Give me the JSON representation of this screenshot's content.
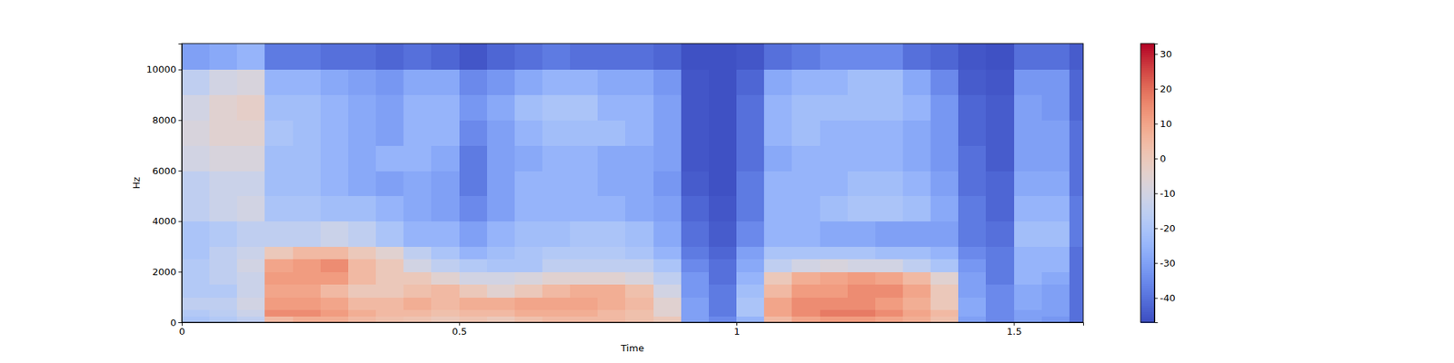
{
  "chart_data": {
    "type": "heatmap",
    "xlabel": "Time",
    "ylabel": "Hz",
    "xlim": [
      0,
      1.625
    ],
    "xticks": [
      0,
      0.5,
      1,
      1.5
    ],
    "ylim": [
      0,
      11025
    ],
    "yticks": [
      0,
      2000,
      4000,
      6000,
      8000,
      10000
    ],
    "x_bins": [
      0,
      0.05,
      0.1,
      0.15,
      0.2,
      0.25,
      0.3,
      0.35,
      0.4,
      0.45,
      0.5,
      0.55,
      0.6,
      0.65,
      0.7,
      0.75,
      0.8,
      0.85,
      0.9,
      0.95,
      1,
      1.05,
      1.1,
      1.15,
      1.2,
      1.25,
      1.3,
      1.35,
      1.4,
      1.45,
      1.5,
      1.55,
      1.6,
      1.625
    ],
    "y_bins": [
      0,
      250,
      500,
      1000,
      1500,
      2000,
      2500,
      3000,
      4000,
      5000,
      6000,
      7000,
      8000,
      9000,
      10000,
      11025
    ],
    "z": [
      [
        -20,
        -18,
        -15,
        5,
        8,
        8,
        5,
        3,
        2,
        0,
        2,
        0,
        3,
        5,
        5,
        5,
        3,
        0,
        -30,
        -35,
        -25,
        5,
        10,
        12,
        12,
        10,
        8,
        3,
        -30,
        -35,
        -30,
        -32,
        -40
      ],
      [
        -18,
        -16,
        -12,
        15,
        15,
        12,
        8,
        5,
        5,
        3,
        5,
        5,
        8,
        8,
        8,
        5,
        3,
        -5,
        -30,
        -38,
        -20,
        10,
        15,
        18,
        18,
        15,
        10,
        5,
        -28,
        -35,
        -30,
        -30,
        -40
      ],
      [
        -15,
        -15,
        -10,
        12,
        12,
        10,
        5,
        5,
        8,
        5,
        8,
        8,
        10,
        10,
        10,
        8,
        5,
        -5,
        -30,
        -38,
        -20,
        10,
        15,
        15,
        15,
        12,
        8,
        0,
        -28,
        -35,
        -28,
        -30,
        -40
      ],
      [
        -18,
        -18,
        -12,
        10,
        10,
        5,
        0,
        0,
        3,
        5,
        0,
        -5,
        0,
        5,
        8,
        8,
        3,
        -10,
        -32,
        -38,
        -22,
        5,
        12,
        12,
        15,
        15,
        10,
        0,
        -30,
        -35,
        -28,
        -30,
        -40
      ],
      [
        -18,
        -15,
        -12,
        12,
        12,
        12,
        5,
        0,
        0,
        -5,
        -10,
        -10,
        -8,
        -5,
        -5,
        -5,
        -8,
        -15,
        -32,
        -40,
        -25,
        0,
        8,
        10,
        12,
        10,
        5,
        -5,
        -30,
        -38,
        -25,
        -28,
        -40
      ],
      [
        -18,
        -15,
        -10,
        10,
        12,
        15,
        5,
        0,
        -10,
        -15,
        -18,
        -20,
        -20,
        -15,
        -15,
        -15,
        -15,
        -20,
        -35,
        -40,
        -28,
        -15,
        -10,
        -8,
        -10,
        -10,
        -15,
        -20,
        -32,
        -38,
        -25,
        -25,
        -40
      ],
      [
        -20,
        -15,
        -12,
        0,
        5,
        5,
        0,
        -5,
        -15,
        -20,
        -25,
        -22,
        -20,
        -18,
        -18,
        -18,
        -20,
        -25,
        -38,
        -42,
        -30,
        -20,
        -20,
        -20,
        -20,
        -22,
        -22,
        -25,
        -35,
        -38,
        -25,
        -25,
        -40
      ],
      [
        -20,
        -18,
        -15,
        -15,
        -15,
        -12,
        -15,
        -20,
        -25,
        -25,
        -30,
        -25,
        -22,
        -22,
        -20,
        -20,
        -22,
        -28,
        -40,
        -44,
        -35,
        -25,
        -25,
        -28,
        -28,
        -30,
        -30,
        -30,
        -38,
        -40,
        -22,
        -22,
        -38
      ],
      [
        -15,
        -12,
        -10,
        -20,
        -20,
        -22,
        -22,
        -25,
        -28,
        -30,
        -35,
        -30,
        -25,
        -25,
        -25,
        -25,
        -28,
        -30,
        -42,
        -45,
        -38,
        -25,
        -25,
        -22,
        -20,
        -20,
        -22,
        -28,
        -38,
        -42,
        -25,
        -25,
        -38
      ],
      [
        -15,
        -12,
        -12,
        -22,
        -22,
        -25,
        -28,
        -30,
        -28,
        -30,
        -38,
        -30,
        -25,
        -25,
        -25,
        -28,
        -28,
        -32,
        -44,
        -46,
        -38,
        -25,
        -25,
        -25,
        -22,
        -22,
        -25,
        -30,
        -40,
        -42,
        -28,
        -28,
        -40
      ],
      [
        -10,
        -8,
        -8,
        -22,
        -22,
        -25,
        -28,
        -25,
        -25,
        -28,
        -38,
        -30,
        -28,
        -25,
        -25,
        -28,
        -28,
        -30,
        -45,
        -46,
        -40,
        -28,
        -25,
        -25,
        -25,
        -25,
        -28,
        -32,
        -40,
        -44,
        -30,
        -30,
        -40
      ],
      [
        -8,
        -5,
        -5,
        -20,
        -22,
        -25,
        -28,
        -30,
        -25,
        -25,
        -35,
        -30,
        -25,
        -22,
        -22,
        -22,
        -25,
        -30,
        -45,
        -46,
        -40,
        -25,
        -22,
        -25,
        -25,
        -25,
        -28,
        -32,
        -42,
        -44,
        -30,
        -30,
        -40
      ],
      [
        -10,
        -5,
        -3,
        -22,
        -22,
        -25,
        -28,
        -30,
        -25,
        -25,
        -32,
        -28,
        -22,
        -20,
        -20,
        -25,
        -25,
        -30,
        -45,
        -46,
        -40,
        -25,
        -22,
        -22,
        -22,
        -22,
        -25,
        -32,
        -42,
        -44,
        -30,
        -32,
        -42
      ],
      [
        -15,
        -10,
        -8,
        -25,
        -25,
        -28,
        -30,
        -32,
        -28,
        -28,
        -35,
        -32,
        -28,
        -25,
        -25,
        -28,
        -28,
        -32,
        -45,
        -46,
        -42,
        -28,
        -25,
        -25,
        -22,
        -22,
        -28,
        -35,
        -44,
        -45,
        -32,
        -32,
        -42
      ],
      [
        -30,
        -28,
        -25,
        -38,
        -38,
        -40,
        -40,
        -42,
        -40,
        -42,
        -45,
        -42,
        -40,
        -38,
        -40,
        -40,
        -40,
        -42,
        -46,
        -46,
        -45,
        -40,
        -38,
        -35,
        -35,
        -35,
        -40,
        -42,
        -45,
        -46,
        -40,
        -40,
        -44
      ]
    ],
    "colorbar": {
      "range": [
        -47,
        33
      ],
      "ticks": [
        -40,
        -30,
        -20,
        -10,
        0,
        10,
        20,
        30
      ]
    }
  }
}
